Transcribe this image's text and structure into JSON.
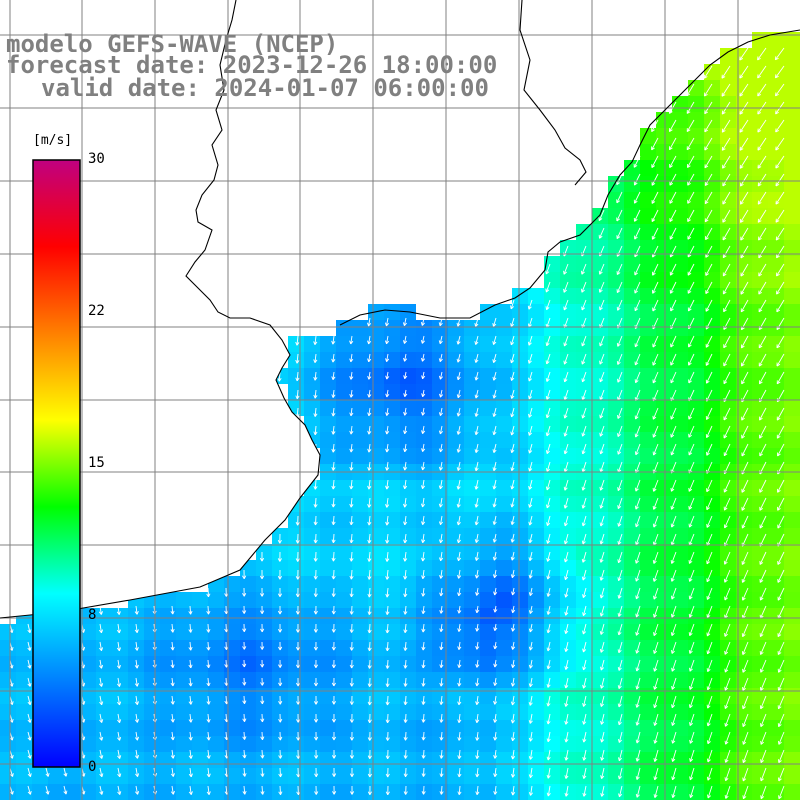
{
  "title": {
    "line1": "modelo GEFS-WAVE (NCEP)",
    "line2": "forecast date: 2023-12-26 18:00:00",
    "line3": "valid date: 2024-01-07 06:00:00"
  },
  "colorbar": {
    "unit": "[m/s]",
    "min": 0,
    "max": 30,
    "ticks": [
      "30",
      "22",
      "15",
      "8",
      "0"
    ],
    "tick_values": [
      30,
      22,
      15,
      8,
      0
    ],
    "colors": [
      "#0000ff",
      "#0080ff",
      "#00ffff",
      "#00ff00",
      "#ffff00",
      "#ff8000",
      "#ff0000",
      "#c00080"
    ]
  },
  "map": {
    "land_color": "#ffffff",
    "coastline_color": "#000000",
    "grid_color": "#808080",
    "vector_color": "#ffffff"
  }
}
